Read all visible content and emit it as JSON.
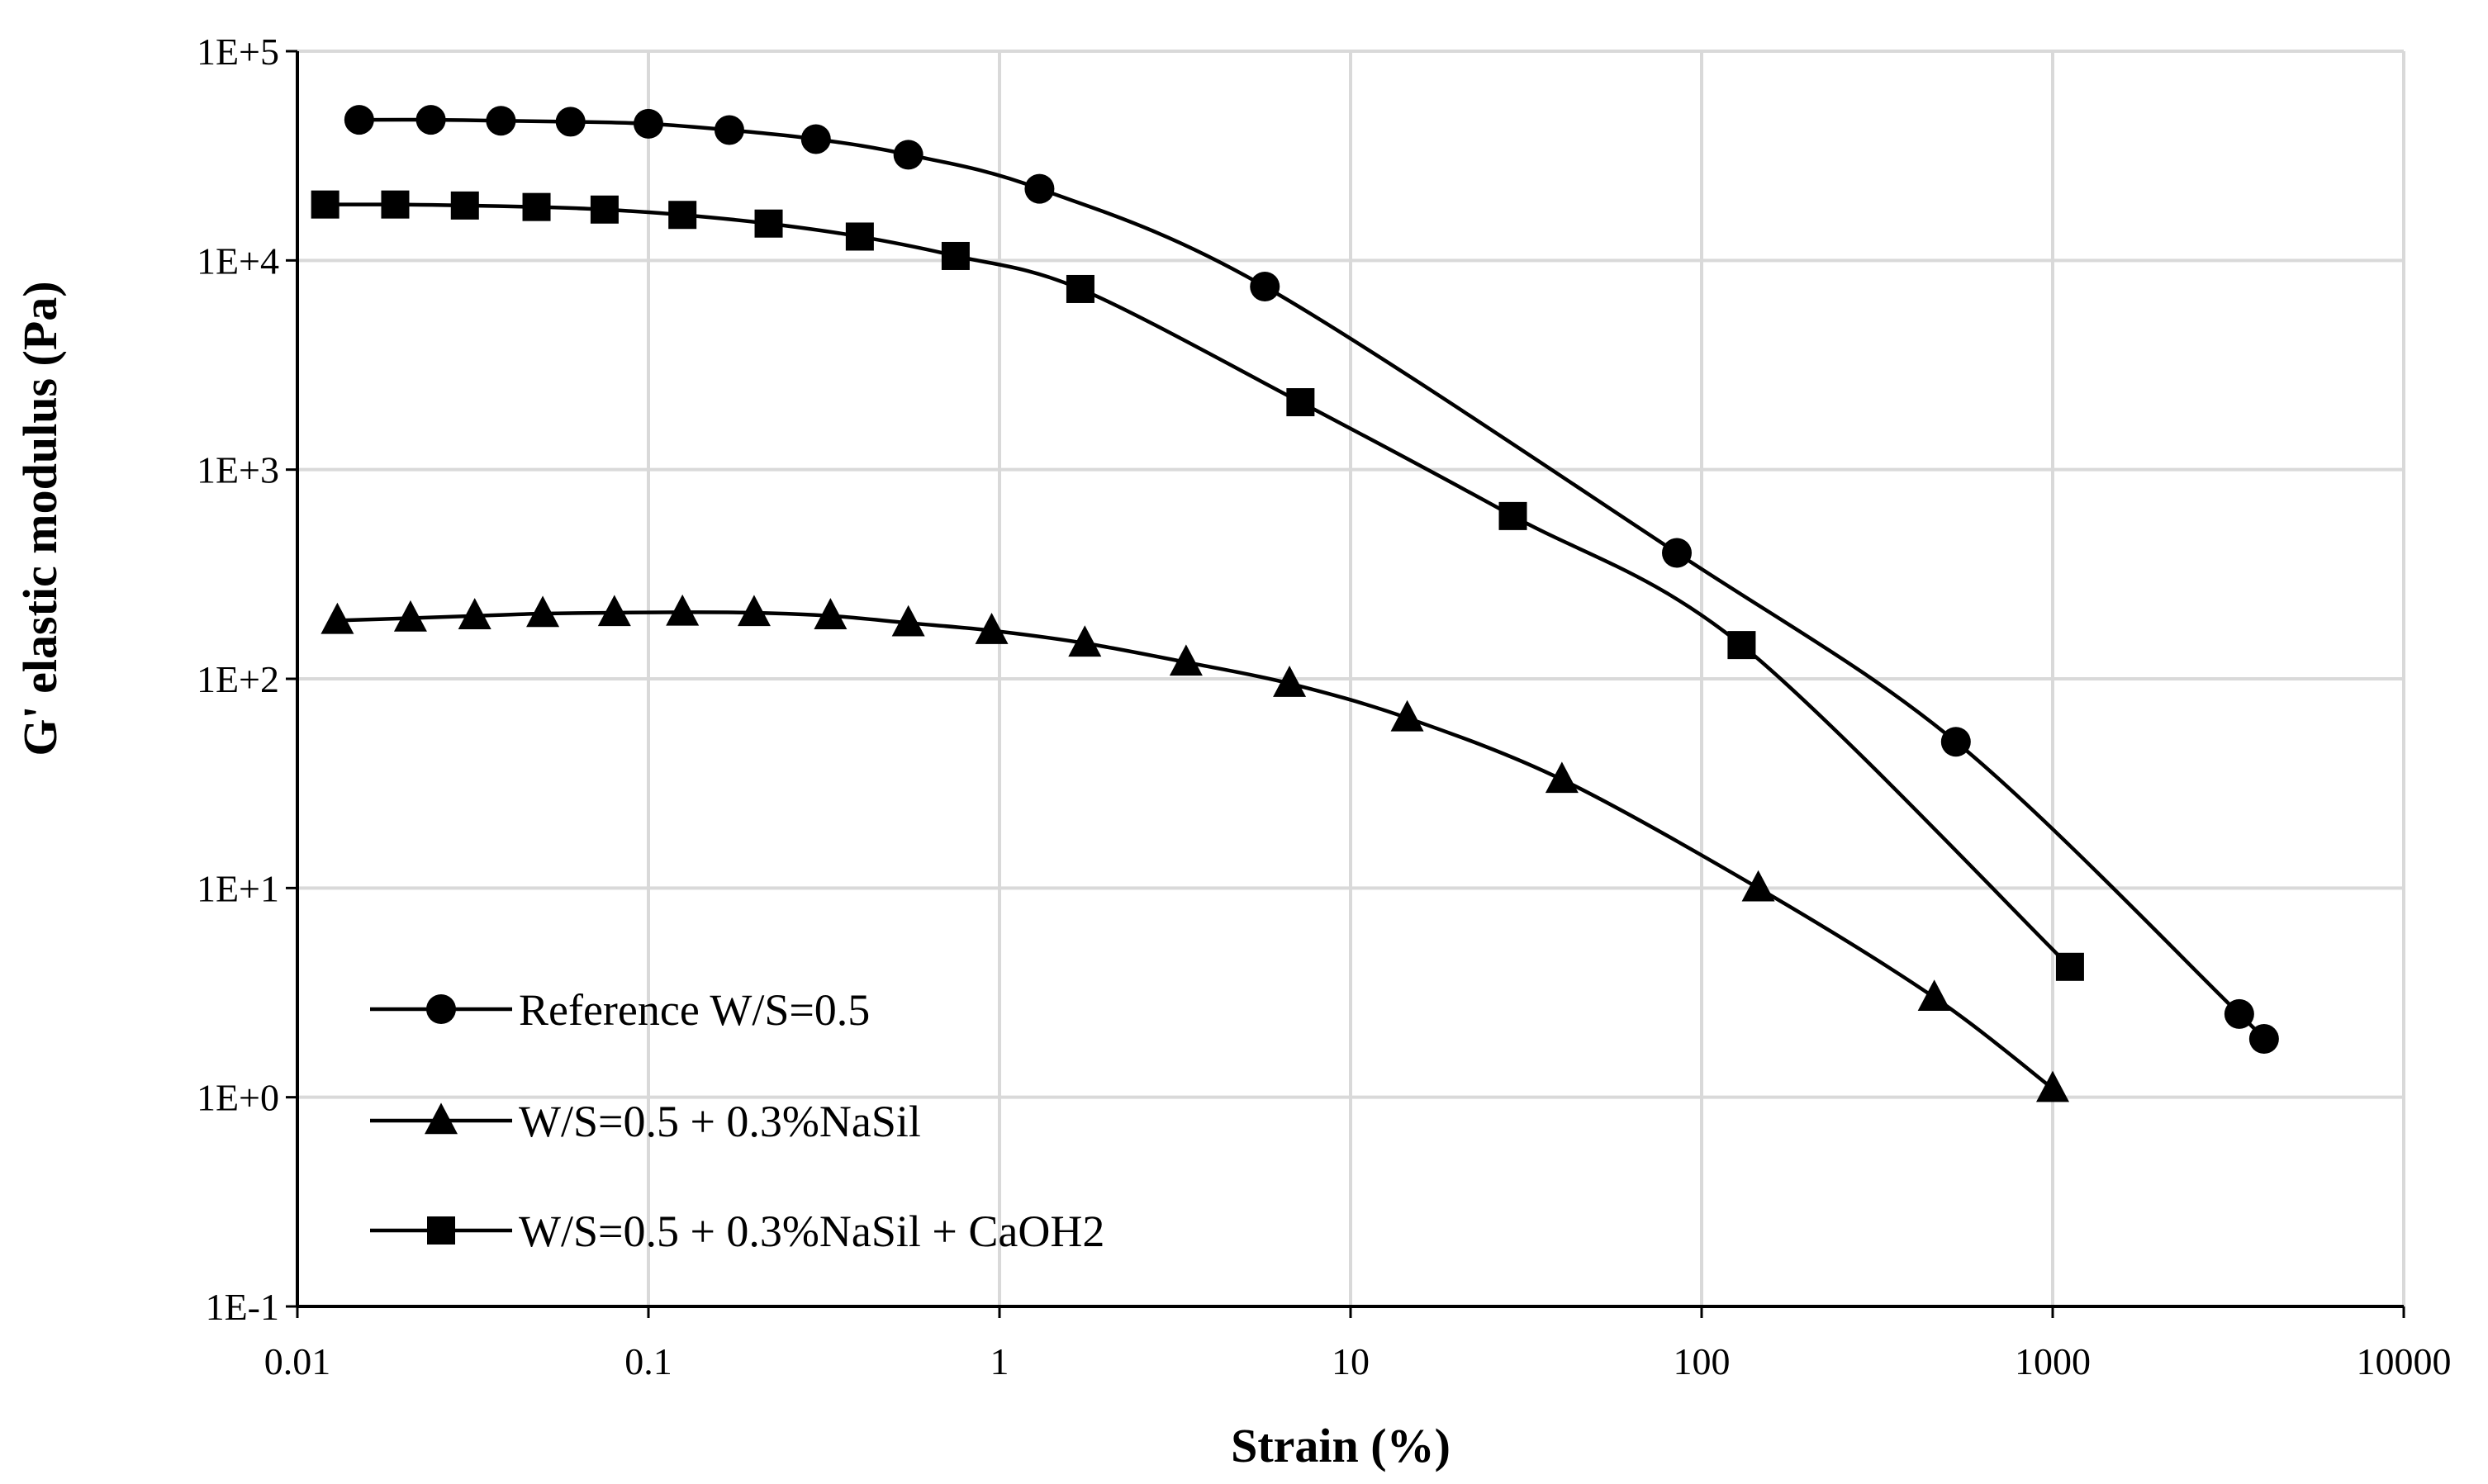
{
  "chart_data": {
    "type": "line",
    "title": "",
    "xlabel": "Strain (%)",
    "ylabel": "G' elastic modulus (Pa)",
    "x_scale": "log",
    "y_scale": "log",
    "xlim": [
      0.01,
      10000
    ],
    "ylim": [
      0.1,
      100000
    ],
    "x_ticks": [
      "0.01",
      "0.1",
      "1",
      "10",
      "100",
      "1000",
      "10000"
    ],
    "y_ticks": [
      "1E-1",
      "1E+0",
      "1E+1",
      "1E+2",
      "1E+3",
      "1E+4",
      "1E+5"
    ],
    "grid": true,
    "legend_position": "bottom-left",
    "series": [
      {
        "name": "Reference W/S=0.5",
        "marker": "circle",
        "color": "#000000",
        "points": [
          [
            0.015,
            47000
          ],
          [
            0.024,
            47000
          ],
          [
            0.038,
            46500
          ],
          [
            0.06,
            46000
          ],
          [
            0.1,
            45000
          ],
          [
            0.17,
            42000
          ],
          [
            0.3,
            38000
          ],
          [
            0.55,
            32000
          ],
          [
            1.3,
            22000
          ],
          [
            5.7,
            7500
          ],
          [
            85,
            400
          ],
          [
            530,
            50
          ],
          [
            3400,
            2.5
          ],
          [
            4000,
            1.9
          ]
        ]
      },
      {
        "name": "W/S=0.5 + 0.3%NaSil",
        "marker": "triangle",
        "color": "#000000",
        "points": [
          [
            0.013,
            190
          ],
          [
            0.021,
            195
          ],
          [
            0.032,
            200
          ],
          [
            0.05,
            205
          ],
          [
            0.08,
            207
          ],
          [
            0.125,
            208
          ],
          [
            0.2,
            207
          ],
          [
            0.33,
            200
          ],
          [
            0.55,
            185
          ],
          [
            0.95,
            170
          ],
          [
            1.75,
            148
          ],
          [
            3.4,
            120
          ],
          [
            6.7,
            95
          ],
          [
            14.5,
            65
          ],
          [
            40,
            33
          ],
          [
            145,
            10
          ],
          [
            460,
            3
          ],
          [
            1000,
            1.1
          ]
        ]
      },
      {
        "name": "W/S=0.5 + 0.3%NaSil + CaOH2",
        "marker": "square",
        "color": "#000000",
        "points": [
          [
            0.012,
            18500
          ],
          [
            0.019,
            18500
          ],
          [
            0.03,
            18300
          ],
          [
            0.048,
            18000
          ],
          [
            0.075,
            17500
          ],
          [
            0.125,
            16500
          ],
          [
            0.22,
            15000
          ],
          [
            0.4,
            13000
          ],
          [
            0.75,
            10500
          ],
          [
            1.7,
            7300
          ],
          [
            7.2,
            2100
          ],
          [
            29,
            600
          ],
          [
            130,
            145
          ],
          [
            1120,
            4.2
          ]
        ]
      }
    ]
  }
}
